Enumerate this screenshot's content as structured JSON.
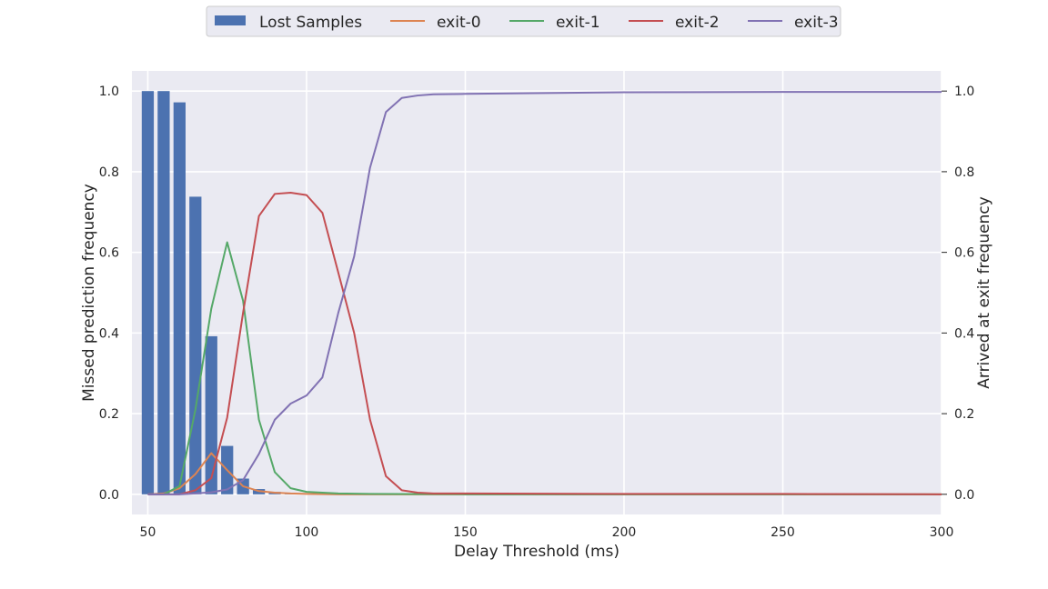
{
  "chart_data": {
    "type": "bar+line",
    "title": "",
    "xlabel": "Delay Threshold (ms)",
    "ylabel_left": "Missed prediction frequency",
    "ylabel_right": "Arrived at exit frequency",
    "xlim": [
      45,
      300
    ],
    "ylim_left": [
      -0.05,
      1.05
    ],
    "ylim_right": [
      -0.05,
      1.05
    ],
    "xticks": [
      50,
      100,
      150,
      200,
      250,
      300
    ],
    "yticks_left": [
      0.0,
      0.2,
      0.4,
      0.6,
      0.8,
      1.0
    ],
    "yticks_right": [
      0.0,
      0.2,
      0.4,
      0.6,
      0.8,
      1.0
    ],
    "grid": true,
    "legend_position": "top-center",
    "bar_width": 3.8,
    "bars": {
      "name": "Lost Samples",
      "color": "#4c72b0",
      "x": [
        50,
        55,
        60,
        65,
        70,
        75,
        80,
        85,
        90,
        95,
        100
      ],
      "values": [
        1.0,
        1.0,
        0.972,
        0.738,
        0.392,
        0.12,
        0.039,
        0.013,
        0.006,
        0.002,
        0.001
      ]
    },
    "series": [
      {
        "name": "exit-0",
        "color": "#dd8452",
        "x": [
          50,
          55,
          60,
          65,
          70,
          75,
          80,
          85,
          90,
          95,
          100,
          110,
          150,
          200,
          250,
          300
        ],
        "values": [
          0.0,
          0.002,
          0.015,
          0.05,
          0.102,
          0.06,
          0.02,
          0.008,
          0.004,
          0.002,
          0.001,
          0.0,
          0.0,
          0.0,
          0.0,
          0.0
        ]
      },
      {
        "name": "exit-1",
        "color": "#55a868",
        "x": [
          50,
          55,
          60,
          65,
          70,
          75,
          80,
          85,
          90,
          95,
          100,
          105,
          110,
          120,
          150,
          200,
          250,
          300
        ],
        "values": [
          0.0,
          0.0,
          0.02,
          0.21,
          0.46,
          0.625,
          0.48,
          0.185,
          0.055,
          0.015,
          0.006,
          0.004,
          0.002,
          0.001,
          0.0,
          0.0,
          0.0,
          0.0
        ]
      },
      {
        "name": "exit-2",
        "color": "#c44e52",
        "x": [
          50,
          55,
          60,
          65,
          70,
          75,
          80,
          85,
          90,
          95,
          100,
          105,
          110,
          115,
          120,
          125,
          130,
          135,
          140,
          150,
          200,
          250,
          300
        ],
        "values": [
          0.0,
          0.0,
          0.0,
          0.01,
          0.04,
          0.19,
          0.45,
          0.69,
          0.745,
          0.748,
          0.742,
          0.698,
          0.55,
          0.4,
          0.185,
          0.045,
          0.01,
          0.004,
          0.002,
          0.002,
          0.001,
          0.001,
          0.0
        ]
      },
      {
        "name": "exit-3",
        "color": "#8172b3",
        "x": [
          50,
          55,
          60,
          65,
          70,
          75,
          80,
          85,
          90,
          95,
          100,
          105,
          110,
          115,
          120,
          125,
          130,
          135,
          140,
          150,
          200,
          250,
          300
        ],
        "values": [
          0.0,
          0.0,
          0.0,
          0.002,
          0.005,
          0.012,
          0.035,
          0.1,
          0.185,
          0.225,
          0.245,
          0.29,
          0.45,
          0.59,
          0.81,
          0.948,
          0.983,
          0.989,
          0.992,
          0.993,
          0.997,
          0.998,
          0.998
        ]
      }
    ]
  }
}
